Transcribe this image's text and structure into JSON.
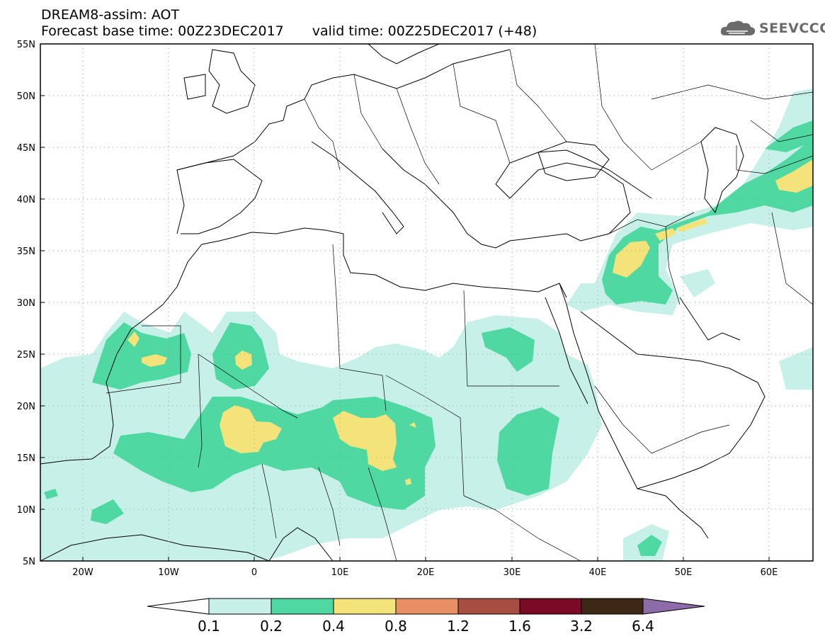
{
  "header": {
    "title_line1": "DREAM8-assim: AOT",
    "base_time": "Forecast base time: 00Z23DEC2017",
    "valid_time": "valid time: 00Z25DEC2017 (+48)"
  },
  "logo": {
    "text": "SEEVCCC",
    "icon": "cloud-icon"
  },
  "map": {
    "lon_range": [
      -25,
      65
    ],
    "lat_range": [
      5,
      55
    ],
    "lat_ticks": [
      "5N",
      "10N",
      "15N",
      "20N",
      "25N",
      "30N",
      "35N",
      "40N",
      "45N",
      "50N",
      "55N"
    ],
    "lon_ticks": [
      "20W",
      "10W",
      "0",
      "10E",
      "20E",
      "30E",
      "40E",
      "50E",
      "60E"
    ],
    "grid": true
  },
  "colorbar": {
    "labels": [
      "0.1",
      "0.2",
      "0.4",
      "0.8",
      "1.2",
      "1.6",
      "3.2",
      "6.4"
    ],
    "colors": [
      "#ffffff",
      "#c7f0e8",
      "#4fd8a2",
      "#f3e37a",
      "#e88f66",
      "#a84e40",
      "#7a0a26",
      "#3d2715",
      "#8d6aa8"
    ]
  }
}
